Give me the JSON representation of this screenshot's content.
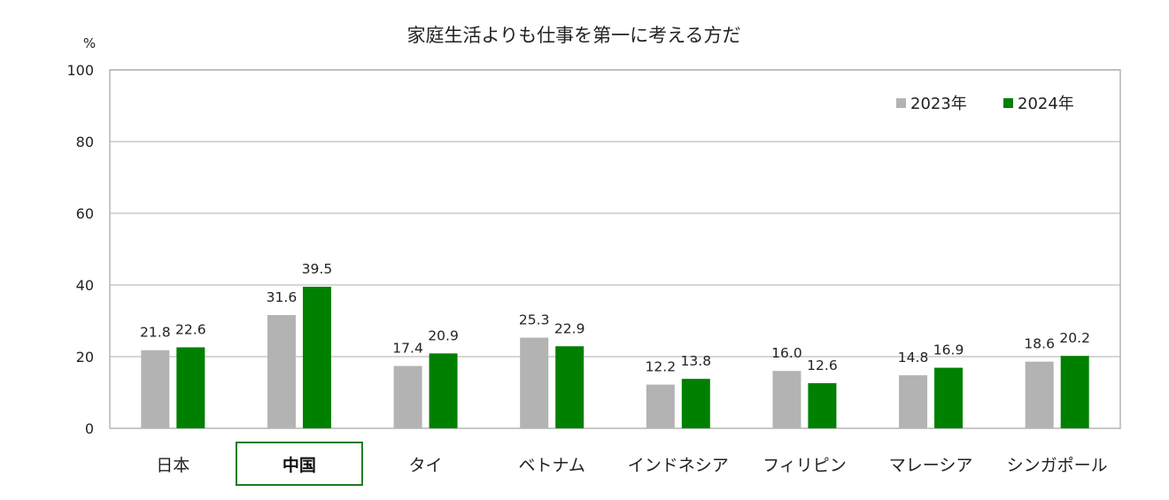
{
  "chart_data": {
    "type": "bar",
    "title": "家庭生活よりも仕事を第一に考える方だ",
    "ylabel": "%",
    "xlabel": "",
    "ylim": [
      0,
      100
    ],
    "yticks": [
      0,
      20,
      40,
      60,
      80,
      100
    ],
    "grid": true,
    "legend_position": "top-right",
    "categories": [
      "日本",
      "中国",
      "タイ",
      "ベトナム",
      "インドネシア",
      "フィリピン",
      "マレーシア",
      "シンガポール"
    ],
    "highlighted_category": "中国",
    "series": [
      {
        "name": "2023年",
        "color": "#b3b3b3",
        "values": [
          21.8,
          31.6,
          17.4,
          25.3,
          12.2,
          16.0,
          14.8,
          18.6
        ],
        "labels": [
          "21.8",
          "31.6",
          "17.4",
          "25.3",
          "12.2",
          "16.0",
          "14.8",
          "18.6"
        ]
      },
      {
        "name": "2024年",
        "color": "#008000",
        "values": [
          22.6,
          39.5,
          20.9,
          22.9,
          13.8,
          12.6,
          16.9,
          20.2
        ],
        "labels": [
          "22.6",
          "39.5",
          "20.9",
          "22.9",
          "13.8",
          "12.6",
          "16.9",
          "20.2"
        ]
      }
    ]
  },
  "colors": {
    "grid": "#c8c8c8",
    "axis": "#b0b0b0",
    "highlight_box": "#1e7a1e"
  }
}
